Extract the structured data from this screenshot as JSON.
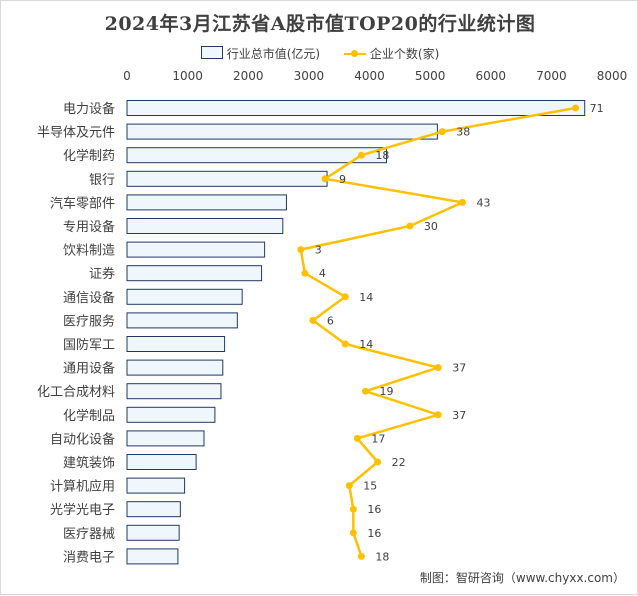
{
  "chart_data": {
    "type": "bar",
    "orientation": "horizontal",
    "title": "2024年3月江苏省A股市值TOP20的行业统计图",
    "categories": [
      "电力设备",
      "半导体及元件",
      "化学制药",
      "银行",
      "汽车零部件",
      "专用设备",
      "饮料制造",
      "证券",
      "通信设备",
      "医疗服务",
      "国防军工",
      "通用设备",
      "化工合成材料",
      "化学制品",
      "自动化设备",
      "建筑装饰",
      "计算机应用",
      "光学光电子",
      "医疗器械",
      "消费电子"
    ],
    "series": [
      {
        "name": "行业总市值(亿元)",
        "type": "bar",
        "axis": "top",
        "color": "#f0f7fc",
        "edge_color": "#1f3864",
        "values": [
          7550,
          5120,
          4280,
          3300,
          2630,
          2570,
          2270,
          2220,
          1900,
          1820,
          1610,
          1580,
          1550,
          1450,
          1270,
          1140,
          950,
          880,
          860,
          840
        ]
      },
      {
        "name": "企业个数(家)",
        "type": "line",
        "axis": "secondary",
        "color": "#ffc000",
        "values": [
          71,
          38,
          18,
          9,
          43,
          30,
          3,
          4,
          14,
          6,
          14,
          37,
          19,
          37,
          17,
          22,
          15,
          16,
          16,
          18
        ]
      }
    ],
    "x_ticks": [
      "0",
      "1000",
      "2000",
      "3000",
      "4000",
      "5000",
      "6000",
      "7000",
      "8000"
    ],
    "xlim": [
      0,
      8000
    ],
    "secondary_xlim": [
      -40,
      80
    ],
    "grid": false,
    "legend_position": "top"
  },
  "source_text": "制图：智研咨询（www.chyxx.com）"
}
